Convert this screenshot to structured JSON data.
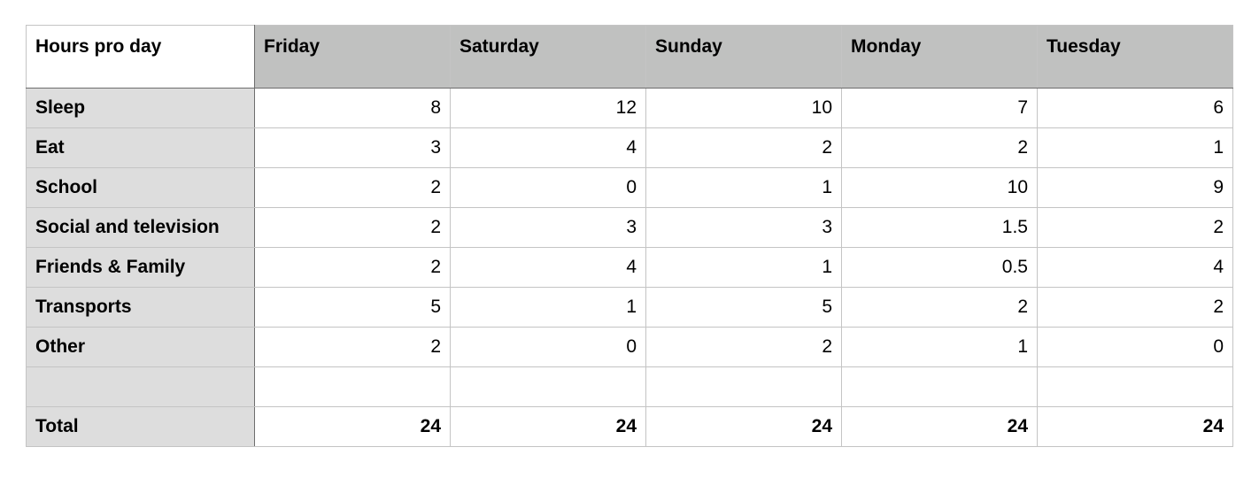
{
  "table": {
    "corner_label": "Hours pro day",
    "columns": [
      "Friday",
      "Saturday",
      "Sunday",
      "Monday",
      "Tuesday"
    ],
    "rows": [
      {
        "label": "Sleep",
        "values": [
          "8",
          "12",
          "10",
          "7",
          "6"
        ]
      },
      {
        "label": "Eat",
        "values": [
          "3",
          "4",
          "2",
          "2",
          "1"
        ]
      },
      {
        "label": "School",
        "values": [
          "2",
          "0",
          "1",
          "10",
          "9"
        ]
      },
      {
        "label": "Social and television",
        "values": [
          "2",
          "3",
          "3",
          "1.5",
          "2"
        ]
      },
      {
        "label": "Friends & Family",
        "values": [
          "2",
          "4",
          "1",
          "0.5",
          "4"
        ]
      },
      {
        "label": "Transports",
        "values": [
          "5",
          "1",
          "5",
          "2",
          "2"
        ]
      },
      {
        "label": "Other",
        "values": [
          "2",
          "0",
          "2",
          "1",
          "0"
        ]
      }
    ],
    "blank_row": {
      "label": "",
      "values": [
        "",
        "",
        "",
        "",
        ""
      ]
    },
    "total": {
      "label": "Total",
      "values": [
        "24",
        "24",
        "24",
        "24",
        "24"
      ]
    }
  },
  "colors": {
    "header_bg": "#c0c1c0",
    "row_header_bg": "#dddddd",
    "grid": "#c4c4c4"
  }
}
